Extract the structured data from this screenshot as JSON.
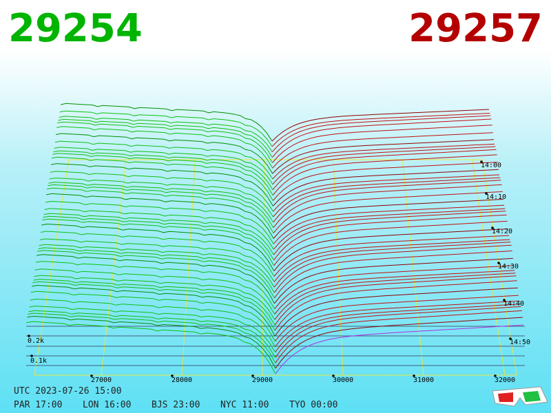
{
  "header": {
    "bid": "29254",
    "ask": "29257"
  },
  "price_axis": {
    "labels": [
      "27000",
      "28000",
      "29000",
      "30000",
      "31000",
      "32000"
    ]
  },
  "time_axis": {
    "labels": [
      "14:00",
      "14:10",
      "14:20",
      "14:30",
      "14:40",
      "14:50"
    ]
  },
  "depth_axis": {
    "labels": [
      "0.2k",
      "0.1k"
    ]
  },
  "footer": {
    "utc": "UTC 2023-07-26 15:00",
    "clocks": [
      "PAR 17:00",
      "LON 16:00",
      "BJS 23:00",
      "NYC 11:00",
      "TYO 00:00"
    ]
  }
}
